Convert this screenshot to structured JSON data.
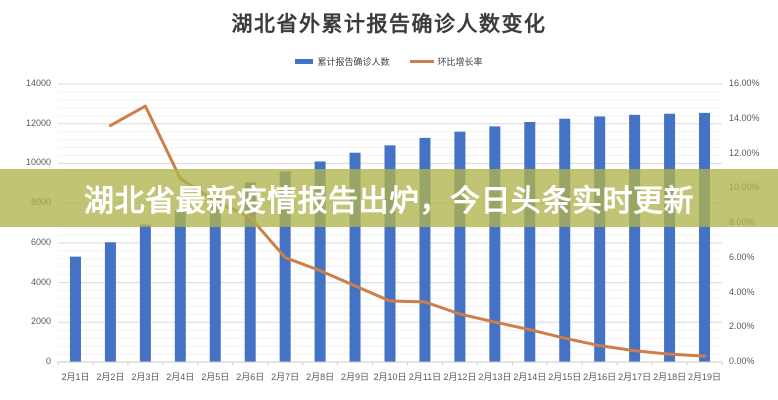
{
  "title": "湖北省外累计报告确诊人数变化",
  "banner": {
    "headline": "湖北省最新疫情报告出炉，今日头条实时更新",
    "bg_color": "#b0b34c",
    "bg_opacity": 0.78,
    "text_color": "#ffffff"
  },
  "legend": [
    {
      "label": "累计报告确诊人数",
      "type": "bar",
      "color": "#4472c4"
    },
    {
      "label": "环比增长率",
      "type": "line",
      "color": "#cd7e49"
    }
  ],
  "chart_data": {
    "type": "combo-bar-line",
    "title": "湖北省外累计报告确诊人数变化",
    "categories": [
      "2月1日",
      "2月2日",
      "2月3日",
      "2月4日",
      "2月5日",
      "2月6日",
      "2月7日",
      "2月8日",
      "2月9日",
      "2月10日",
      "2月11日",
      "2月12日",
      "2月13日",
      "2月14日",
      "2月15日",
      "2月16日",
      "2月17日",
      "2月18日",
      "2月19日"
    ],
    "series": [
      {
        "name": "累计报告确诊人数",
        "type": "bar",
        "axis": "left",
        "color": "#4472c4",
        "values": [
          5306,
          6028,
          6916,
          7646,
          8353,
          9049,
          9593,
          10098,
          10540,
          10910,
          11287,
          11598,
          11865,
          12086,
          12251,
          12366,
          12447,
          12503,
          12545
        ]
      },
      {
        "name": "环比增长率",
        "type": "line",
        "axis": "right",
        "color": "#cd7e49",
        "values": [
          null,
          13.61,
          14.73,
          10.56,
          9.25,
          8.33,
          6.01,
          5.26,
          4.38,
          3.51,
          3.46,
          2.76,
          2.3,
          1.86,
          1.37,
          0.94,
          0.65,
          0.45,
          0.34
        ]
      }
    ],
    "left_axis": {
      "min": 0,
      "max": 14000,
      "tick_step": 2000,
      "minor_step": 400,
      "tick_values": [
        0,
        2000,
        4000,
        6000,
        8000,
        10000,
        12000,
        14000
      ],
      "tick_labels": [
        "0",
        "2000",
        "4000",
        "6000",
        "8000",
        "10000",
        "12000",
        "14000"
      ]
    },
    "right_axis": {
      "min": 0,
      "max": 16,
      "tick_values": [
        0,
        2,
        4,
        6,
        8,
        10,
        12,
        14,
        16
      ],
      "tick_labels": [
        "0.00%",
        "2.00%",
        "4.00%",
        "6.00%",
        "8.00%",
        "10.00%",
        "12.00%",
        "14.00%",
        "16.00%"
      ]
    },
    "grid": "major+minor horizontal",
    "legend_position": "top"
  },
  "colors": {
    "major_gridline": "#dadada",
    "minor_gridline": "#f3f3f3",
    "axis_line": "#c9c9c9",
    "axis_text": "#595959",
    "title_text": "#3c3c3c"
  }
}
